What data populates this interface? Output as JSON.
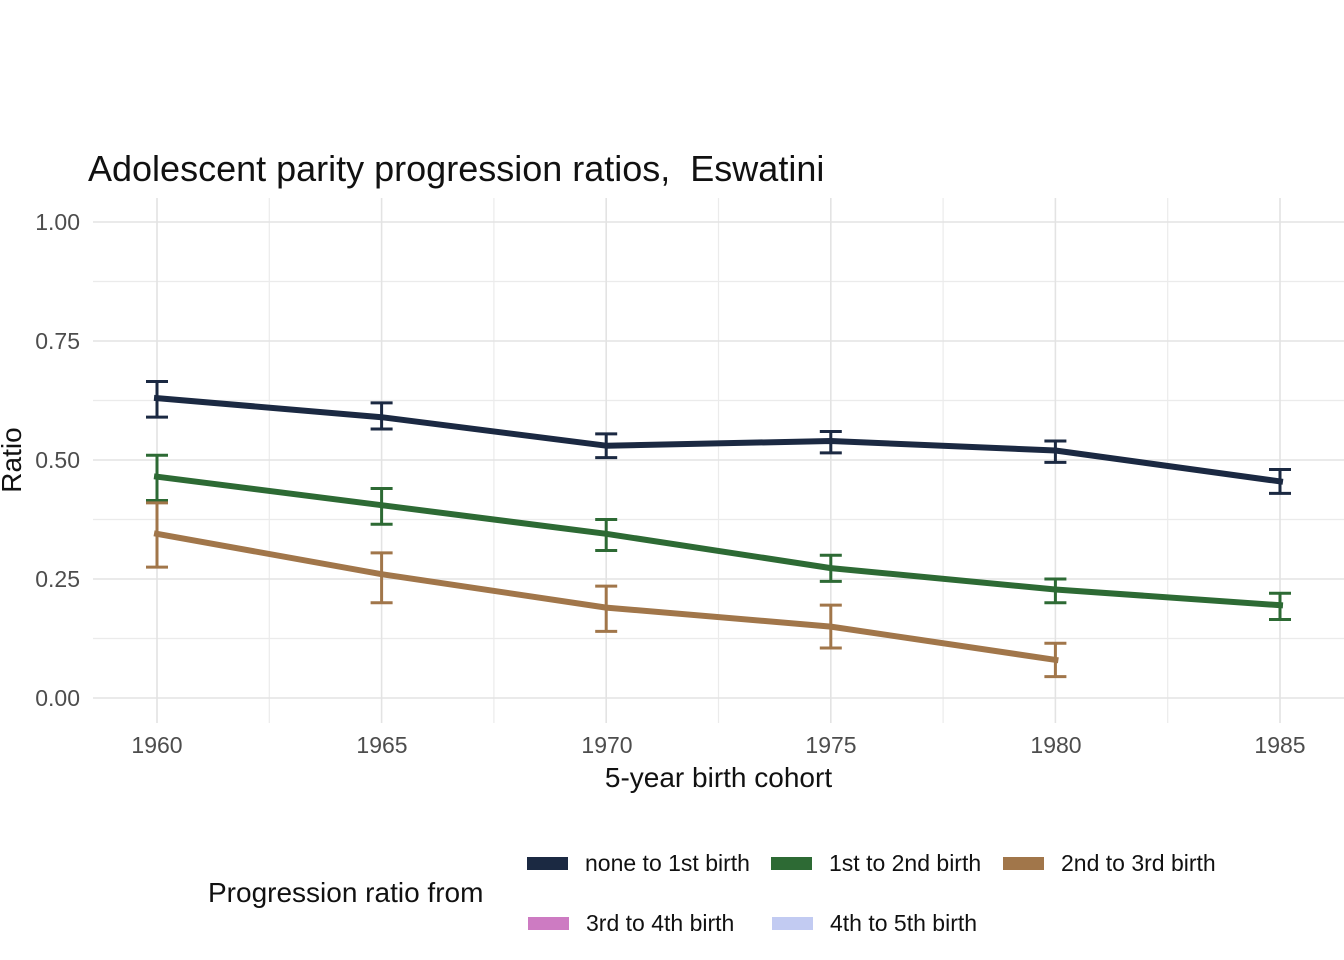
{
  "chart_data": {
    "type": "line",
    "title": "Adolescent parity progression ratios,  Eswatini",
    "xlabel": "5-year birth cohort",
    "ylabel": "Ratio",
    "ylim": [
      0.0,
      1.0
    ],
    "xlim": [
      1960,
      1985
    ],
    "grid": "on",
    "legend_position": "bottom",
    "legend_title": "Progression ratio from",
    "error_bars": true,
    "xticks": [
      {
        "v": 1960,
        "label": "1960"
      },
      {
        "v": 1965,
        "label": "1965"
      },
      {
        "v": 1970,
        "label": "1970"
      },
      {
        "v": 1975,
        "label": "1975"
      },
      {
        "v": 1980,
        "label": "1980"
      },
      {
        "v": 1985,
        "label": "1985"
      }
    ],
    "yticks": [
      {
        "v": 0.0,
        "label": "0.00"
      },
      {
        "v": 0.25,
        "label": "0.25"
      },
      {
        "v": 0.5,
        "label": "0.50"
      },
      {
        "v": 0.75,
        "label": "0.75"
      },
      {
        "v": 1.0,
        "label": "1.00"
      }
    ],
    "series": [
      {
        "name": "none to 1st birth",
        "color": "#1b2942",
        "x": [
          1960,
          1965,
          1970,
          1975,
          1980,
          1985
        ],
        "y": [
          0.63,
          0.59,
          0.53,
          0.54,
          0.52,
          0.455
        ],
        "err_low": [
          0.59,
          0.565,
          0.505,
          0.515,
          0.495,
          0.43
        ],
        "err_high": [
          0.665,
          0.62,
          0.555,
          0.56,
          0.54,
          0.48
        ]
      },
      {
        "name": "1st to 2nd birth",
        "color": "#2d6a34",
        "x": [
          1960,
          1965,
          1970,
          1975,
          1980,
          1985
        ],
        "y": [
          0.465,
          0.405,
          0.345,
          0.273,
          0.228,
          0.195
        ],
        "err_low": [
          0.415,
          0.365,
          0.31,
          0.245,
          0.2,
          0.165
        ],
        "err_high": [
          0.51,
          0.44,
          0.375,
          0.3,
          0.25,
          0.22
        ]
      },
      {
        "name": "2nd to 3rd birth",
        "color": "#a1764a",
        "x": [
          1960,
          1965,
          1970,
          1975,
          1980
        ],
        "y": [
          0.345,
          0.26,
          0.19,
          0.15,
          0.08
        ],
        "err_low": [
          0.275,
          0.2,
          0.14,
          0.105,
          0.045
        ],
        "err_high": [
          0.41,
          0.305,
          0.235,
          0.195,
          0.115
        ]
      },
      {
        "name": "3rd to 4th birth",
        "color": "#cd7bc2",
        "x": [],
        "y": []
      },
      {
        "name": "4th to 5th birth",
        "color": "#c2cbf2",
        "x": [],
        "y": []
      }
    ],
    "colors": {
      "grid_major": "#e3e3e3",
      "grid_minor": "#ebebeb",
      "tick_text": "#4d4d4d",
      "background": "#ffffff"
    }
  }
}
